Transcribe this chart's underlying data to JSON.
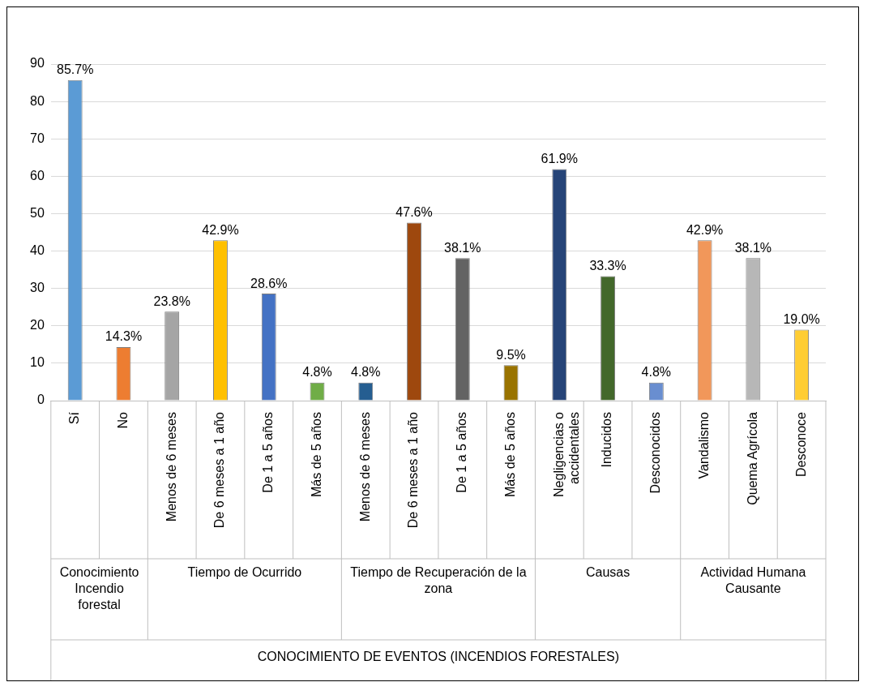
{
  "chart_data": {
    "type": "bar",
    "categories": [
      "Sí",
      "No",
      "Menos de 6 meses",
      "De 6 meses a 1 año",
      "De 1 a 5 años",
      "Más de 5 años",
      "Menos de 6 meses",
      "De 6 meses a 1 año",
      "De 1 a 5 años",
      "Más de 5 años",
      "Negligencias o accidentales",
      "Inducidos",
      "Desconocidos",
      "Vandalismo",
      "Quema Agrícola",
      "Desconoce"
    ],
    "values": [
      85.7,
      14.3,
      23.8,
      42.9,
      28.6,
      4.8,
      4.8,
      47.6,
      38.1,
      9.5,
      61.9,
      33.3,
      4.8,
      42.9,
      38.1,
      19.0
    ],
    "value_labels": [
      "85.7%",
      "14.3%",
      "23.8%",
      "42.9%",
      "28.6%",
      "4.8%",
      "4.8%",
      "47.6%",
      "38.1%",
      "9.5%",
      "61.9%",
      "33.3%",
      "4.8%",
      "42.9%",
      "38.1%",
      "19.0%"
    ],
    "colors": [
      "#5b9bd5",
      "#ed7d31",
      "#a5a5a5",
      "#ffc000",
      "#4472c4",
      "#70ad47",
      "#255e91",
      "#9e480e",
      "#636363",
      "#997300",
      "#264478",
      "#43682b",
      "#698ed0",
      "#f1975a",
      "#b7b7b7",
      "#ffcd33"
    ],
    "annotations": [
      "Conocimiento Incendio forestal",
      "Tiempo de Ocurrido",
      "Tiempo de Recuperación de la zona",
      "Causas",
      "Actividad Humana Causante",
      "CONOCIMIENTO DE EVENTOS (INCENDIOS FORESTALES)"
    ],
    "ylim": [
      0,
      90
    ],
    "yticks": [
      0,
      10,
      20,
      30,
      40,
      50,
      60,
      70,
      80,
      90
    ],
    "grid": "y",
    "legend": false
  }
}
